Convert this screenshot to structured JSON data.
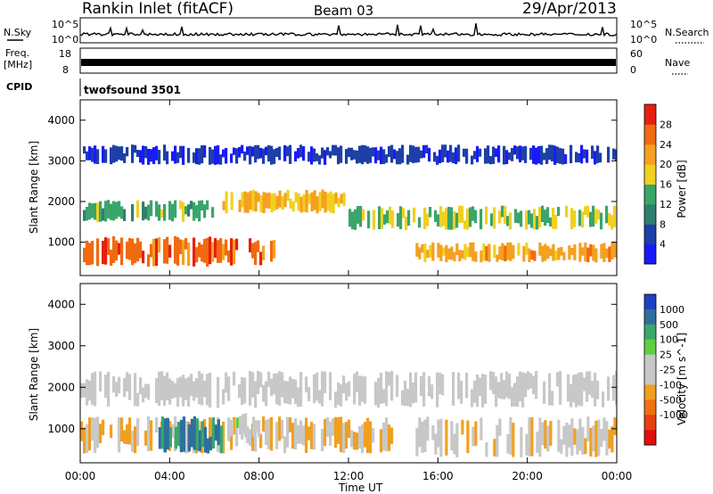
{
  "header": {
    "station": "Rankin Inlet (fitACF)",
    "beam": "Beam 03",
    "date": "29/Apr/2013"
  },
  "strips": {
    "nsky_label": "N.Sky",
    "nsky_ticks": [
      "10^5",
      "10^0"
    ],
    "nsearch_label": "N.Search",
    "freq_label_1": "Freq.",
    "freq_label_2": "[MHz]",
    "freq_ticks": [
      "18",
      "8"
    ],
    "nave_ticks": [
      "60",
      "0"
    ],
    "nave_label": "Nave",
    "cpid_label": "CPID",
    "cpid_value": "twofsound 3501"
  },
  "axes": {
    "ylabel": "Slant Range [km]",
    "xlabel": "Time UT",
    "y_ticks": [
      "1000",
      "2000",
      "3000",
      "4000"
    ],
    "x_ticks": [
      "00:00",
      "04:00",
      "08:00",
      "12:00",
      "16:00",
      "20:00",
      "00:00"
    ]
  },
  "colors": {
    "power_scale": [
      "#1a1aff",
      "#1e3fa8",
      "#2f7f6f",
      "#3aa56a",
      "#f0d020",
      "#f5a020",
      "#f06a10",
      "#e52010"
    ],
    "velocity_scale": [
      "#2040c0",
      "#2f6f9f",
      "#3aa86a",
      "#5fcf40",
      "#c8c8c8",
      "#c8c8c8",
      "#f0a020",
      "#f07010",
      "#e84010",
      "#e01010"
    ]
  },
  "chart_data": {
    "type": "heatmap",
    "title": "Rankin Inlet (fitACF)",
    "xlabel": "Time UT",
    "ylabel": "Slant Range [km]",
    "xlim": [
      0,
      24
    ],
    "ylim": [
      180,
      4500
    ],
    "panels": [
      {
        "quantity": "Power",
        "colorbar_label": "Power [dB]",
        "colorbar_ticks": [
          "4",
          "8",
          "12",
          "16",
          "20",
          "24",
          "28"
        ],
        "range": [
          0,
          32
        ],
        "bands": [
          {
            "t0": 0.0,
            "t1": 8.8,
            "r0": 400,
            "r1": 1150,
            "value": 26
          },
          {
            "t0": 0.0,
            "t1": 6.0,
            "r0": 1500,
            "r1": 2050,
            "value": 14
          },
          {
            "t0": 6.0,
            "t1": 12.0,
            "r0": 1700,
            "r1": 2300,
            "value": 20
          },
          {
            "t0": 12.0,
            "t1": 24.0,
            "r0": 1300,
            "r1": 1900,
            "value": 16
          },
          {
            "t0": 15.0,
            "t1": 24.0,
            "r0": 500,
            "r1": 1000,
            "value": 22
          },
          {
            "t0": 0.0,
            "t1": 24.0,
            "r0": 2900,
            "r1": 3400,
            "value": 5
          }
        ]
      },
      {
        "quantity": "Velocity",
        "colorbar_label": "Velocity [m s^-1]",
        "colorbar_ticks": [
          "1000",
          "500",
          "100",
          "25",
          "-25",
          "-100",
          "-500",
          "-1000"
        ],
        "range": [
          -1000,
          1000
        ],
        "bands": [
          {
            "t0": 0.0,
            "t1": 14.0,
            "r0": 400,
            "r1": 1300,
            "value": -200
          },
          {
            "t0": 3.5,
            "t1": 6.5,
            "r0": 400,
            "r1": 1300,
            "value": 600
          },
          {
            "t0": 6.5,
            "t1": 8.0,
            "r0": 700,
            "r1": 1400,
            "value": 150
          },
          {
            "t0": 0.0,
            "t1": 24.0,
            "r0": 1500,
            "r1": 2400,
            "value": 0
          },
          {
            "t0": 15.0,
            "t1": 24.0,
            "r0": 300,
            "r1": 1300,
            "value": -150
          }
        ]
      }
    ]
  }
}
